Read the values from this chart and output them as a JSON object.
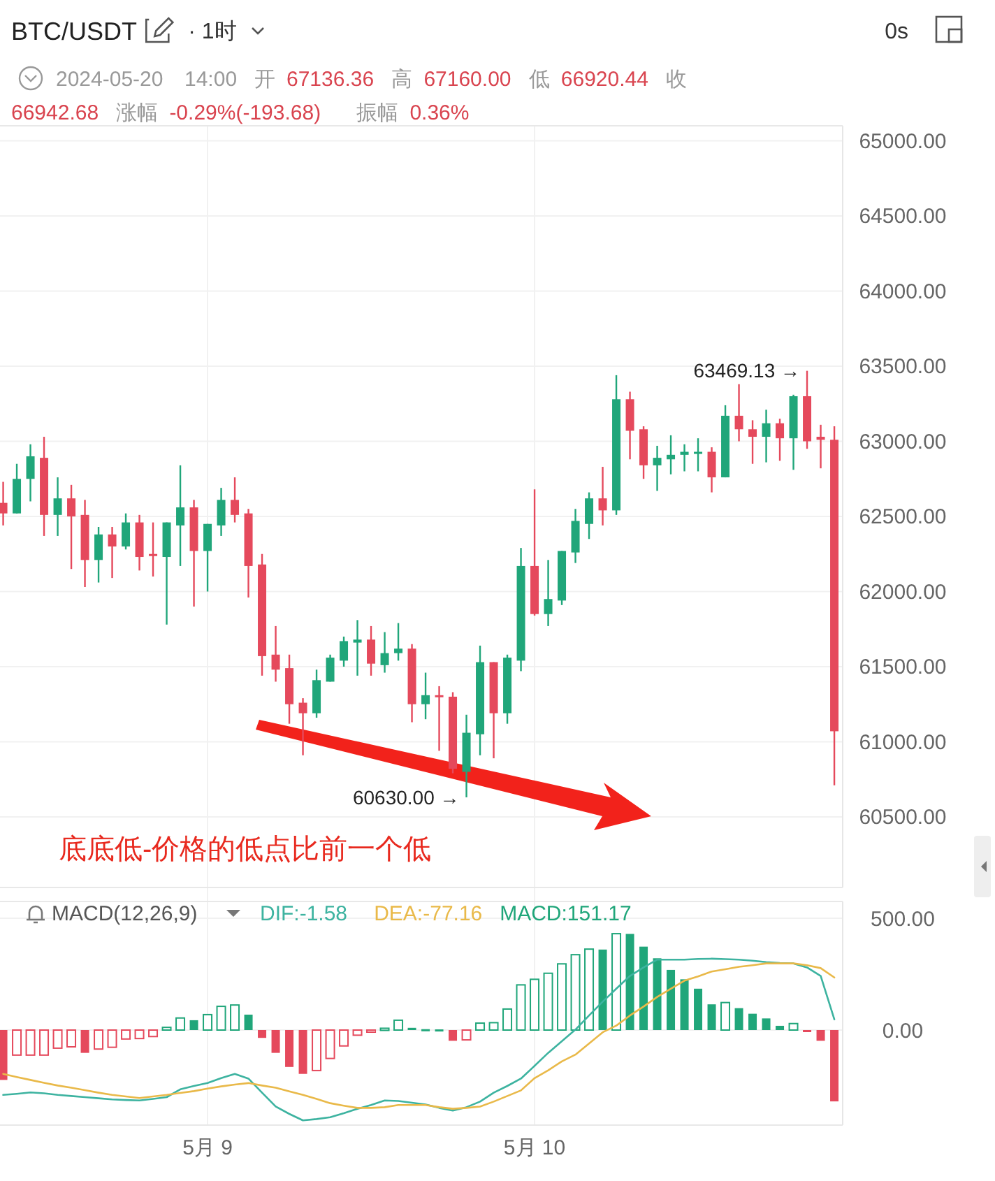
{
  "chart_data": [
    {
      "type": "candlestick",
      "title": "BTC/USDT",
      "subtitle": "2024-05-20 14:00 开 67136.36 高 67160.00 低 66920.44 收 66942.68 涨幅 -0.29%(-193.68) 振幅 0.36%",
      "annotations": [
        "· 1时",
        "0s",
        "底底低-价格的低点比前一个低",
        "63469.13 →",
        "60630.00 →"
      ],
      "categories": [
        null,
        null,
        null,
        null,
        null,
        null,
        null,
        null,
        null,
        null,
        null,
        null,
        null,
        null,
        null,
        null,
        null,
        null,
        null,
        null,
        null,
        null,
        null,
        null,
        null,
        null,
        null,
        null,
        null,
        null,
        null,
        null,
        null,
        null,
        null,
        null,
        null,
        null,
        null,
        null,
        null,
        null,
        null,
        null,
        null,
        null,
        null,
        null,
        null,
        null,
        null,
        null,
        null,
        null,
        null,
        null,
        null,
        null,
        null,
        null,
        null,
        null
      ],
      "ohlc": [
        [
          62590,
          62730,
          62440,
          62520
        ],
        [
          62520,
          62850,
          62520,
          62750
        ],
        [
          62750,
          62980,
          62600,
          62900
        ],
        [
          62890,
          63030,
          62370,
          62510
        ],
        [
          62510,
          62760,
          62370,
          62620
        ],
        [
          62620,
          62710,
          62150,
          62500
        ],
        [
          62510,
          62610,
          62030,
          62210
        ],
        [
          62210,
          62430,
          62060,
          62380
        ],
        [
          62380,
          62430,
          62090,
          62300
        ],
        [
          62300,
          62520,
          62280,
          62460
        ],
        [
          62460,
          62510,
          62140,
          62230
        ],
        [
          62250,
          62460,
          62100,
          62240
        ],
        [
          62230,
          62460,
          61780,
          62460
        ],
        [
          62440,
          62840,
          62170,
          62560
        ],
        [
          62560,
          62610,
          61900,
          62270
        ],
        [
          62270,
          62450,
          62000,
          62450
        ],
        [
          62440,
          62690,
          62370,
          62610
        ],
        [
          62610,
          62760,
          62460,
          62510
        ],
        [
          62520,
          62550,
          61960,
          62170
        ],
        [
          62180,
          62250,
          61440,
          61570
        ],
        [
          61580,
          61770,
          61400,
          61480
        ],
        [
          61490,
          61580,
          61120,
          61250
        ],
        [
          61260,
          61290,
          60910,
          61190
        ],
        [
          61190,
          61480,
          61160,
          61410
        ],
        [
          61400,
          61580,
          61400,
          61560
        ],
        [
          61540,
          61700,
          61500,
          61670
        ],
        [
          61660,
          61810,
          61440,
          61680
        ],
        [
          61680,
          61770,
          61440,
          61520
        ],
        [
          61510,
          61730,
          61460,
          61590
        ],
        [
          61590,
          61790,
          61540,
          61620
        ],
        [
          61620,
          61650,
          61130,
          61250
        ],
        [
          61250,
          61460,
          61150,
          61310
        ],
        [
          61310,
          61370,
          60940,
          61300
        ],
        [
          61300,
          61330,
          60790,
          60820
        ],
        [
          60800,
          61180,
          60630,
          61060
        ],
        [
          61050,
          61640,
          60910,
          61530
        ],
        [
          61530,
          61530,
          60890,
          61190
        ],
        [
          61190,
          61580,
          61120,
          61560
        ],
        [
          61540,
          62290,
          61470,
          62170
        ],
        [
          62170,
          62680,
          61840,
          61850
        ],
        [
          61850,
          62210,
          61770,
          61950
        ],
        [
          61940,
          62270,
          61910,
          62270
        ],
        [
          62260,
          62550,
          62190,
          62470
        ],
        [
          62450,
          62660,
          62350,
          62620
        ],
        [
          62620,
          62830,
          62440,
          62540
        ],
        [
          62540,
          63440,
          62510,
          63280
        ],
        [
          63280,
          63330,
          62880,
          63070
        ],
        [
          63080,
          63100,
          62750,
          62840
        ],
        [
          62840,
          62970,
          62670,
          62890
        ],
        [
          62880,
          63040,
          62780,
          62910
        ],
        [
          62910,
          62980,
          62800,
          62930
        ],
        [
          62920,
          63020,
          62800,
          62930
        ],
        [
          62930,
          62960,
          62660,
          62760
        ],
        [
          62760,
          63240,
          62760,
          63170
        ],
        [
          63170,
          63380,
          63000,
          63080
        ],
        [
          63080,
          63140,
          62850,
          63030
        ],
        [
          63030,
          63210,
          62860,
          63120
        ],
        [
          63120,
          63150,
          62870,
          63020
        ],
        [
          63020,
          63310,
          62810,
          63300
        ],
        [
          63300,
          63469.13,
          62950,
          63000
        ],
        [
          63030,
          63110,
          62820,
          63010
        ],
        [
          63010,
          63100,
          60710,
          61070
        ]
      ],
      "colors": [
        "#e5495c",
        "#20a67a",
        "#20a67a",
        "#e5495c",
        "#20a67a",
        "#e5495c",
        "#e5495c",
        "#20a67a",
        "#e5495c",
        "#20a67a",
        "#e5495c",
        "#e5495c",
        "#20a67a",
        "#20a67a",
        "#e5495c",
        "#20a67a",
        "#20a67a",
        "#e5495c",
        "#e5495c",
        "#e5495c",
        "#e5495c",
        "#e5495c",
        "#e5495c",
        "#20a67a",
        "#20a67a",
        "#20a67a",
        "#20a67a",
        "#e5495c",
        "#20a67a",
        "#20a67a",
        "#e5495c",
        "#20a67a",
        "#e5495c",
        "#e5495c",
        "#20a67a",
        "#20a67a",
        "#e5495c",
        "#20a67a",
        "#20a67a",
        "#e5495c",
        "#20a67a",
        "#20a67a",
        "#20a67a",
        "#20a67a",
        "#e5495c",
        "#20a67a",
        "#e5495c",
        "#e5495c",
        "#20a67a",
        "#20a67a",
        "#20a67a",
        "#20a67a",
        "#e5495c",
        "#20a67a",
        "#e5495c",
        "#e5495c",
        "#20a67a",
        "#e5495c",
        "#20a67a",
        "#e5495c",
        "#e5495c",
        "#e5495c"
      ],
      "ylim": [
        60030,
        65100
      ],
      "yticks": [
        {
          "value": 60500,
          "label": "60500.00"
        },
        {
          "value": 61000,
          "label": "61000.00"
        },
        {
          "value": 61500,
          "label": "61500.00"
        },
        {
          "value": 62000,
          "label": "62000.00"
        },
        {
          "value": 62500,
          "label": "62500.00"
        },
        {
          "value": 63000,
          "label": "63000.00"
        },
        {
          "value": 63500,
          "label": "63500.00"
        },
        {
          "value": 64000,
          "label": "64000.00"
        },
        {
          "value": 64500,
          "label": "64500.00"
        },
        {
          "value": 65000,
          "label": "65000.00"
        }
      ],
      "grid": "y",
      "tick_labels": "y"
    },
    {
      "type": "bar",
      "title": "MACD(12,26,9)",
      "legend": "top left",
      "grid": true,
      "categories": [
        null,
        null,
        null,
        null,
        null,
        null,
        null,
        null,
        null,
        null,
        null,
        null,
        null,
        null,
        null,
        "5月 9",
        null,
        null,
        null,
        null,
        null,
        null,
        null,
        null,
        null,
        null,
        null,
        null,
        null,
        null,
        null,
        null,
        null,
        null,
        null,
        null,
        null,
        null,
        null,
        "5月 10",
        null,
        null,
        null,
        null,
        null,
        null,
        null,
        null,
        null,
        null,
        null,
        null,
        null,
        null,
        null,
        null,
        null,
        null,
        null,
        null,
        null,
        null
      ],
      "ylim": [
        -425,
        575
      ],
      "yticks": [
        {
          "value": 0,
          "label": "0.00"
        },
        {
          "value": 500,
          "label": "500.00"
        }
      ],
      "series": [
        {
          "name": "DIF:-1.58",
          "type": "line",
          "color": "#3db3a0",
          "values": [
            -290,
            -285,
            -279,
            -283,
            -290,
            -295,
            -300,
            -305,
            -310,
            -313,
            -315,
            -308,
            -300,
            -265,
            -250,
            -237,
            -215,
            -196,
            -217,
            -280,
            -342,
            -375,
            -404,
            -398,
            -390,
            -372,
            -352,
            -335,
            -315,
            -317,
            -325,
            -333,
            -348,
            -360,
            -345,
            -320,
            -280,
            -250,
            -217,
            -160,
            -102,
            -50,
            2,
            65,
            127,
            185,
            242,
            280,
            315,
            315,
            315,
            318,
            319,
            317,
            315,
            310,
            304,
            300,
            298,
            280,
            242,
            48
          ]
        },
        {
          "name": "DEA:-77.16",
          "type": "line",
          "color": "#e9b949",
          "values": [
            -196,
            -210,
            -223,
            -236,
            -248,
            -258,
            -269,
            -280,
            -290,
            -297,
            -304,
            -297,
            -290,
            -281,
            -273,
            -262,
            -252,
            -244,
            -237,
            -248,
            -258,
            -274,
            -290,
            -308,
            -327,
            -338,
            -348,
            -348,
            -345,
            -335,
            -335,
            -335,
            -345,
            -352,
            -348,
            -342,
            -320,
            -295,
            -270,
            -215,
            -180,
            -140,
            -110,
            -60,
            -10,
            20,
            65,
            105,
            148,
            185,
            221,
            240,
            262,
            272,
            283,
            290,
            298,
            298,
            298,
            290,
            277,
            235
          ]
        },
        {
          "name": "MACD:151.17",
          "type": "bar",
          "color": "#20a67a",
          "values": [
            -223,
            -112,
            -112,
            -112,
            -81,
            -75,
            -102,
            -85,
            -77,
            -40,
            -38,
            -29,
            12,
            54,
            44,
            69,
            106,
            112,
            69,
            -35,
            -102,
            -165,
            -196,
            -181,
            -127,
            -71,
            -23,
            -4,
            8,
            44,
            10,
            4,
            3,
            -48,
            -44,
            31,
            33,
            94,
            202,
            227,
            254,
            296,
            337,
            362,
            360,
            431,
            430,
            373,
            321,
            269,
            227,
            185,
            115,
            123,
            98,
            73,
            52,
            19,
            29,
            -6,
            -48,
            -319
          ],
          "colors": [
            "#e5495c",
            "#e5495c",
            "#e5495c",
            "#e5495c",
            "#e5495c",
            "#e5495c",
            "#e5495c",
            "#e5495c",
            "#e5495c",
            "#e5495c",
            "#e5495c",
            "#e5495c",
            "#20a67a",
            "#20a67a",
            "#20a67a",
            "#20a67a",
            "#20a67a",
            "#20a67a",
            "#20a67a",
            "#e5495c",
            "#e5495c",
            "#e5495c",
            "#e5495c",
            "#e5495c",
            "#e5495c",
            "#e5495c",
            "#e5495c",
            "#e5495c",
            "#20a67a",
            "#20a67a",
            "#20a67a",
            "#20a67a",
            "#20a67a",
            "#e5495c",
            "#e5495c",
            "#20a67a",
            "#20a67a",
            "#20a67a",
            "#20a67a",
            "#20a67a",
            "#20a67a",
            "#20a67a",
            "#20a67a",
            "#20a67a",
            "#20a67a",
            "#20a67a",
            "#20a67a",
            "#20a67a",
            "#20a67a",
            "#20a67a",
            "#20a67a",
            "#20a67a",
            "#20a67a",
            "#20a67a",
            "#20a67a",
            "#20a67a",
            "#20a67a",
            "#20a67a",
            "#20a67a",
            "#e5495c",
            "#e5495c",
            "#e5495c"
          ]
        }
      ]
    }
  ]
}
